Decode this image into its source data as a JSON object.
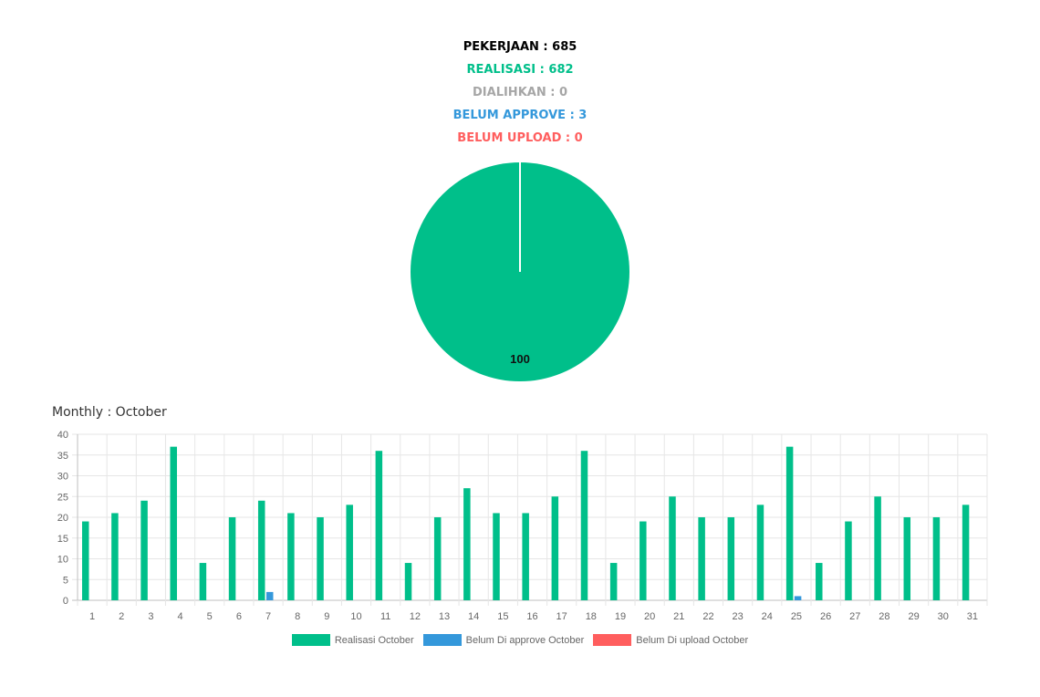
{
  "summary": {
    "pekerjaan": "PEKERJAAN : 685",
    "realisasi": "REALISASI : 682",
    "dialihkan": "DIALIHKAN : 0",
    "belum_approve": "BELUM APPROVE : 3",
    "belum_upload": "BELUM UPLOAD : 0"
  },
  "colors": {
    "realisasi": "#00bf8a",
    "approve": "#3498db",
    "upload": "#ff5e5e",
    "pekerjaan": "#000000",
    "dialihkan": "#a6a6a6"
  },
  "monthly_title": "Monthly : October",
  "legend": [
    {
      "label": "Realisasi October",
      "color": "#00bf8a"
    },
    {
      "label": "Belum Di approve October",
      "color": "#3498db"
    },
    {
      "label": "Belum Di upload October",
      "color": "#ff5e5e"
    }
  ],
  "chart_data": [
    {
      "type": "pie",
      "categories": [
        "Realisasi",
        "Belum Approve",
        "Belum Upload"
      ],
      "values": [
        100,
        0,
        0
      ],
      "slice_labels": [
        "100"
      ],
      "colors": [
        "#00bf8a",
        "#3498db",
        "#ff5e5e"
      ]
    },
    {
      "type": "bar",
      "categories": [
        "1",
        "2",
        "3",
        "4",
        "5",
        "6",
        "7",
        "8",
        "9",
        "10",
        "11",
        "12",
        "13",
        "14",
        "15",
        "16",
        "17",
        "18",
        "19",
        "20",
        "21",
        "22",
        "23",
        "24",
        "25",
        "26",
        "27",
        "28",
        "29",
        "30",
        "31"
      ],
      "series": [
        {
          "name": "Realisasi October",
          "color": "#00bf8a",
          "values": [
            19,
            21,
            24,
            37,
            9,
            20,
            24,
            21,
            20,
            23,
            36,
            9,
            20,
            27,
            21,
            21,
            25,
            36,
            9,
            19,
            25,
            20,
            20,
            23,
            37,
            9,
            19,
            25,
            20,
            20,
            23
          ]
        },
        {
          "name": "Belum Di approve October",
          "color": "#3498db",
          "values": [
            0,
            0,
            0,
            0,
            0,
            0,
            2,
            0,
            0,
            0,
            0,
            0,
            0,
            0,
            0,
            0,
            0,
            0,
            0,
            0,
            0,
            0,
            0,
            0,
            1,
            0,
            0,
            0,
            0,
            0,
            0
          ]
        },
        {
          "name": "Belum Di upload October",
          "color": "#ff5e5e",
          "values": [
            0,
            0,
            0,
            0,
            0,
            0,
            0,
            0,
            0,
            0,
            0,
            0,
            0,
            0,
            0,
            0,
            0,
            0,
            0,
            0,
            0,
            0,
            0,
            0,
            0,
            0,
            0,
            0,
            0,
            0,
            0
          ]
        }
      ],
      "ylim": [
        0,
        40
      ],
      "yticks": [
        0,
        5,
        10,
        15,
        20,
        25,
        30,
        35,
        40
      ],
      "grid": true,
      "legend_position": "bottom"
    }
  ]
}
